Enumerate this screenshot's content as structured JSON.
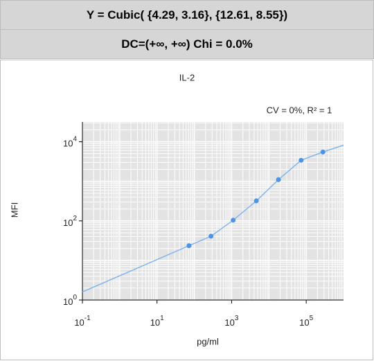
{
  "header": {
    "equation": "Y = Cubic( {4.29, 3.16}, {12.61, 8.55})",
    "stats": "DC=(+∞, +∞) Chi = 0.0%"
  },
  "chart_data": {
    "type": "scatter",
    "title": "IL-2",
    "annotation": "CV = 0%,  R² = 1",
    "x_label": "pg/ml",
    "y_label": "MFI",
    "log_x": true,
    "log_y": true,
    "grid": true,
    "xlim": [
      0.1,
      1000000
    ],
    "ylim": [
      1,
      31623
    ],
    "xticks": [
      {
        "value": 0.1,
        "label": "10",
        "exponent": "-1"
      },
      {
        "value": 10,
        "label": "10",
        "exponent": "1"
      },
      {
        "value": 1000,
        "label": "10",
        "exponent": "3"
      },
      {
        "value": 100000,
        "label": "10",
        "exponent": "5"
      }
    ],
    "yticks": [
      {
        "value": 1,
        "label": "10",
        "exponent": "0"
      },
      {
        "value": 100,
        "label": "10",
        "exponent": "2"
      },
      {
        "value": 10000,
        "label": "10",
        "exponent": "4"
      }
    ],
    "series": [
      {
        "color": "#4d94e8",
        "x": [
          72,
          280,
          1100,
          4600,
          18000,
          73000,
          280000
        ],
        "values": [
          23.6,
          41,
          104,
          320,
          1100,
          3400,
          5500
        ]
      }
    ],
    "fit": {
      "color": "#7fb6ee",
      "x": [
        0.1,
        72,
        280,
        1100,
        4600,
        18000,
        73000,
        280000,
        1000000
      ],
      "values": [
        1.6,
        23.6,
        41,
        104,
        320,
        1100,
        3400,
        5500,
        8200
      ]
    }
  }
}
